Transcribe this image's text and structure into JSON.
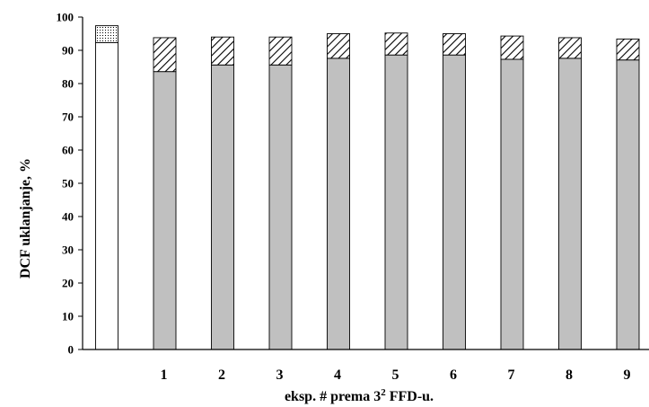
{
  "chart_data": {
    "type": "bar",
    "stacked": true,
    "categories": [
      "",
      "1",
      "2",
      "3",
      "4",
      "5",
      "6",
      "7",
      "8",
      "9"
    ],
    "series": [
      {
        "fill": "#c0c0c0",
        "values": [
          92.3,
          83.6,
          85.6,
          85.6,
          87.6,
          88.6,
          88.6,
          87.3,
          87.6,
          87.1
        ]
      },
      {
        "fill": "diagonal-hatch",
        "values": [
          5.1,
          10.2,
          8.4,
          8.4,
          7.4,
          6.6,
          6.4,
          7.0,
          6.2,
          6.3
        ]
      }
    ],
    "first_bar_colors": [
      "#ffffff",
      "dotted"
    ],
    "xlabel_main": "eksp. # prema 3",
    "xlabel_sup": "2",
    "xlabel_tail": " FFD-u.",
    "ylabel": "DCF uklanjanje, %",
    "ylim": [
      0,
      100
    ],
    "yticks": [
      "0",
      "10",
      "20",
      "30",
      "40",
      "50",
      "60",
      "70",
      "80",
      "90",
      "100"
    ],
    "grid": false,
    "legend": "none"
  }
}
